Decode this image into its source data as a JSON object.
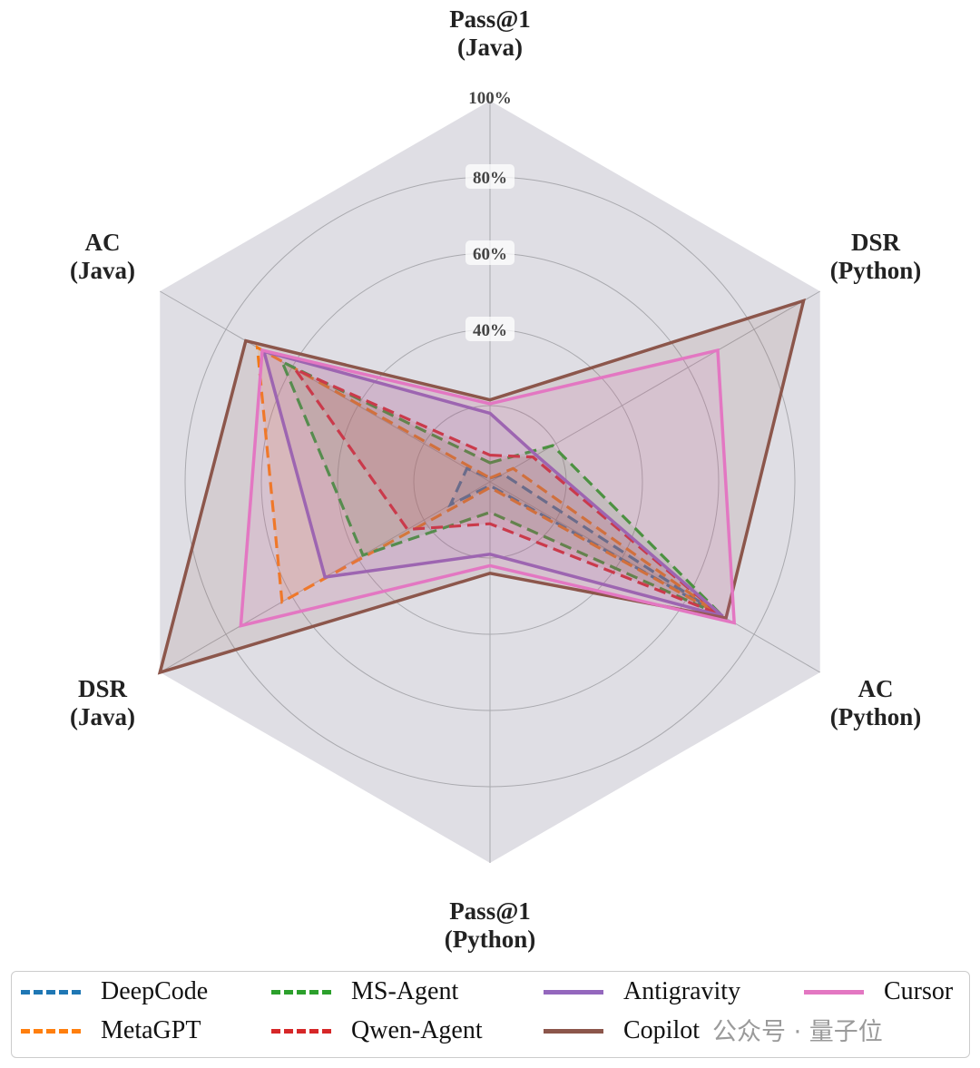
{
  "chart_data": {
    "type": "radar",
    "axes": [
      "Pass@1\n(Java)",
      "DSR\n(Python)",
      "AC\n(Python)",
      "Pass@1\n(Python)",
      "DSR\n(Java)",
      "AC\n(Java)"
    ],
    "axis_labels": [
      {
        "line1": "Pass@1",
        "line2": "(Java)"
      },
      {
        "line1": "DSR",
        "line2": "(Python)"
      },
      {
        "line1": "AC",
        "line2": "(Python)"
      },
      {
        "line1": "Pass@1",
        "line2": "(Python)"
      },
      {
        "line1": "DSR",
        "line2": "(Java)"
      },
      {
        "line1": "AC",
        "line2": "(Java)"
      }
    ],
    "radial_ticks": [
      "40%",
      "60%",
      "80%",
      "100%"
    ],
    "radial_range": [
      0,
      100
    ],
    "grid": true,
    "legend_position": "bottom",
    "series": [
      {
        "name": "DeepCode",
        "color": "#1f77b4",
        "style": "dashed",
        "values": [
          1,
          4,
          68,
          1,
          12,
          7
        ]
      },
      {
        "name": "MetaGPT",
        "color": "#ff7f0e",
        "style": "dashed",
        "values": [
          1,
          7,
          70,
          1.5,
          63,
          70.5
        ]
      },
      {
        "name": "MS-Agent",
        "color": "#2ca02c",
        "style": "dashed",
        "values": [
          5,
          19,
          70.5,
          8,
          38.5,
          63
        ]
      },
      {
        "name": "Qwen-Agent",
        "color": "#d62728",
        "style": "dashed",
        "values": [
          7,
          13,
          69.5,
          11,
          25,
          59
        ]
      },
      {
        "name": "Antigravity",
        "color": "#9467bd",
        "style": "solid",
        "values": [
          18,
          14,
          70.5,
          19,
          50,
          68.5
        ]
      },
      {
        "name": "Copilot",
        "color": "#8c564b",
        "style": "solid",
        "values": [
          21.5,
          95,
          71.5,
          24,
          100,
          74
        ]
      },
      {
        "name": "Cursor",
        "color": "#e377c2",
        "style": "solid",
        "values": [
          20.5,
          69,
          74,
          22,
          75.5,
          69
        ]
      }
    ]
  },
  "legend": {
    "items": [
      "DeepCode",
      "MetaGPT",
      "MS-Agent",
      "Qwen-Agent",
      "Antigravity",
      "Copilot",
      "Cursor"
    ]
  },
  "watermark": "公众号 · 量子位"
}
